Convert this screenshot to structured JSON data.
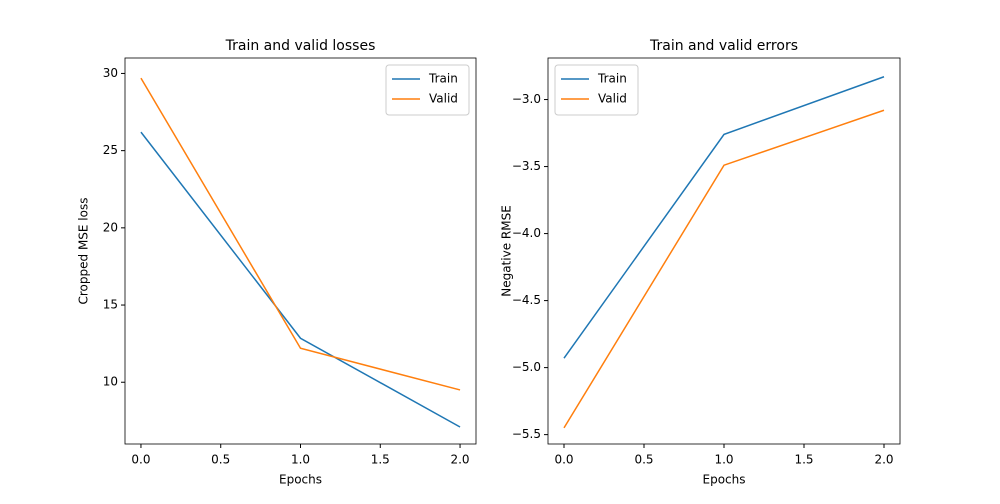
{
  "chart_data": [
    {
      "type": "line",
      "title": "Train and valid losses",
      "xlabel": "Epochs",
      "ylabel": "Cropped MSE loss",
      "x": [
        0,
        1,
        2
      ],
      "series": [
        {
          "name": "Train",
          "color": "#1f77b4",
          "values": [
            26.2,
            12.85,
            7.1
          ]
        },
        {
          "name": "Valid",
          "color": "#ff7f0e",
          "values": [
            29.7,
            12.2,
            9.5
          ]
        }
      ],
      "xlim": [
        -0.1,
        2.1
      ],
      "xticks": [
        {
          "value": 0,
          "label": "0.0"
        },
        {
          "value": 0.5,
          "label": "0.5"
        },
        {
          "value": 1,
          "label": "1.0"
        },
        {
          "value": 1.5,
          "label": "1.5"
        },
        {
          "value": 2,
          "label": "2.0"
        }
      ],
      "ylim": [
        6.0,
        31.0
      ],
      "yticks": [
        10,
        15,
        20,
        25,
        30
      ],
      "legend": "upper right"
    },
    {
      "type": "line",
      "title": "Train and valid errors",
      "xlabel": "Epochs",
      "ylabel": "Negative RMSE",
      "x": [
        0,
        1,
        2
      ],
      "series": [
        {
          "name": "Train",
          "color": "#1f77b4",
          "values": [
            -4.93,
            -3.26,
            -2.83
          ]
        },
        {
          "name": "Valid",
          "color": "#ff7f0e",
          "values": [
            -5.45,
            -3.49,
            -3.08
          ]
        }
      ],
      "xlim": [
        -0.1,
        2.1
      ],
      "xticks": [
        {
          "value": 0,
          "label": "0.0"
        },
        {
          "value": 0.5,
          "label": "0.5"
        },
        {
          "value": 1,
          "label": "1.0"
        },
        {
          "value": 1.5,
          "label": "1.5"
        },
        {
          "value": 2,
          "label": "2.0"
        }
      ],
      "ylim": [
        -5.57,
        -2.69
      ],
      "yticks": [
        {
          "value": -5.5,
          "label": "−5.5"
        },
        {
          "value": -5,
          "label": "−5.0"
        },
        {
          "value": -4.5,
          "label": "−4.5"
        },
        {
          "value": -4,
          "label": "−4.0"
        },
        {
          "value": -3.5,
          "label": "−3.5"
        },
        {
          "value": -3,
          "label": "−3.0"
        }
      ],
      "legend": "upper left"
    }
  ]
}
